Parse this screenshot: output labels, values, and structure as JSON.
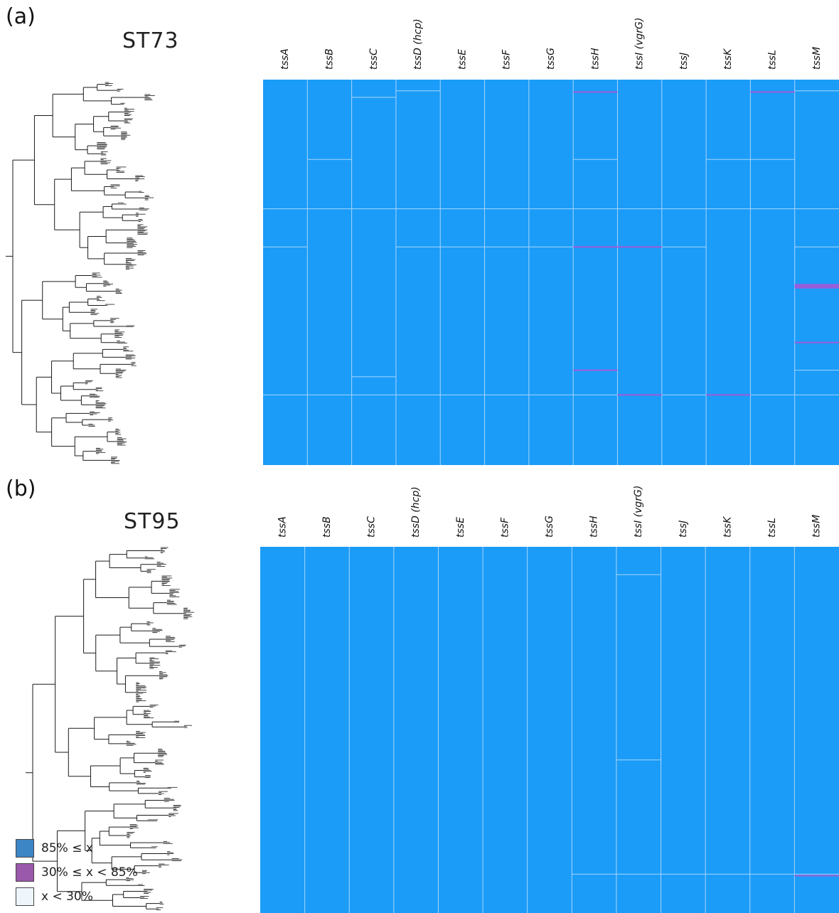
{
  "figure": {
    "panels": [
      {
        "label": "(a)",
        "title": "ST73"
      },
      {
        "label": "(b)",
        "title": "ST95"
      }
    ],
    "legend": [
      {
        "text": "85% ≤ x",
        "color": "#3d86c6"
      },
      {
        "text": "30% ≤ x < 85%",
        "color": "#9b59ab"
      },
      {
        "text": "x < 30%",
        "color": "#eef6fb"
      }
    ]
  },
  "colors": {
    "high": "#1a9bf8",
    "mid": "#a05ad8",
    "divider": "#a9d6fb",
    "tree": "#1a1a1a"
  },
  "chart_data": [
    {
      "type": "heatmap",
      "title": "ST73",
      "columns": [
        "tssA",
        "tssB",
        "tssC",
        "tssD (hcp)",
        "tssE",
        "tssF",
        "tssG",
        "tssH",
        "tssI (vgrG)",
        "tssJ",
        "tssK",
        "tssL",
        "tssM"
      ],
      "value_bins": [
        "85% ≤ x",
        "30% ≤ x < 85%",
        "x < 30%"
      ],
      "dominant_bin": "85% ≤ x",
      "mid_bin_rows": [
        {
          "gene": "tssH",
          "rows_fraction": [
            0.032,
            0.434,
            0.754
          ]
        },
        {
          "gene": "tssI (vgrG)",
          "rows_fraction": [
            0.434,
            0.818
          ]
        },
        {
          "gene": "tssK",
          "rows_fraction": [
            0.818
          ]
        },
        {
          "gene": "tssL",
          "rows_fraction": [
            0.032
          ]
        },
        {
          "gene": "tssM",
          "rows_fraction": [
            0.532,
            0.536,
            0.54,
            0.682
          ]
        }
      ],
      "clade_breaks_fraction": {
        "tssA": [
          0.335,
          0.434,
          0.818
        ],
        "tssB": [
          0.207,
          0.335,
          0.818
        ],
        "tssC": [
          0.046,
          0.335,
          0.771,
          0.818
        ],
        "tssD (hcp)": [
          0.029,
          0.335,
          0.434,
          0.818
        ],
        "tssE": [
          0.335,
          0.434,
          0.818
        ],
        "tssF": [
          0.335,
          0.434,
          0.818
        ],
        "tssG": [
          0.335,
          0.434,
          0.818
        ],
        "tssH": [
          0.207,
          0.335,
          0.818
        ],
        "tssI (vgrG)": [
          0.335,
          0.818
        ],
        "tssJ": [
          0.335,
          0.434,
          0.818
        ],
        "tssK": [
          0.207,
          0.335
        ],
        "tssL": [
          0.207,
          0.335,
          0.818
        ],
        "tssM": [
          0.029,
          0.335,
          0.434,
          0.754,
          0.818
        ]
      }
    },
    {
      "type": "heatmap",
      "title": "ST95",
      "columns": [
        "tssA",
        "tssB",
        "tssC",
        "tssD (hcp)",
        "tssE",
        "tssF",
        "tssG",
        "tssH",
        "tssI (vgrG)",
        "tssJ",
        "tssK",
        "tssL",
        "tssM"
      ],
      "value_bins": [
        "85% ≤ x",
        "30% ≤ x < 85%",
        "x < 30%"
      ],
      "dominant_bin": "85% ≤ x",
      "mid_bin_rows": [
        {
          "gene": "tssM",
          "rows_fraction": [
            0.898
          ]
        }
      ],
      "clade_breaks_fraction": {
        "tssH": [
          0.894
        ],
        "tssI (vgrG)": [
          0.076,
          0.582,
          0.894
        ],
        "tssJ": [
          0.894
        ],
        "tssK": [
          0.894
        ],
        "tssL": [
          0.894
        ],
        "tssM": [
          0.894
        ]
      }
    }
  ]
}
